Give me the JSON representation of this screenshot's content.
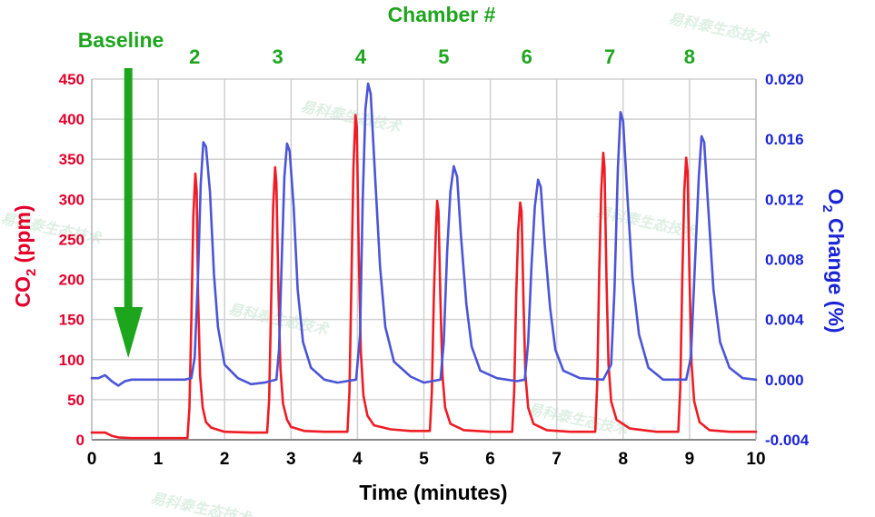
{
  "chart_data": {
    "type": "line",
    "title": "Chamber #",
    "xlabel": "Time (minutes)",
    "ylabel_left": "CO",
    "ylabel_left_sub": "2",
    "ylabel_left_unit": " (ppm)",
    "ylabel_right": "O",
    "ylabel_right_sub": "2",
    "ylabel_right_unit": " Change (%)",
    "xlim": [
      0,
      10
    ],
    "ylim_left": [
      0,
      450
    ],
    "ylim_right": [
      -0.004,
      0.02
    ],
    "xticks": [
      "0",
      "1",
      "2",
      "3",
      "4",
      "5",
      "6",
      "7",
      "8",
      "9",
      "10"
    ],
    "yticks_left": [
      "0",
      "50",
      "100",
      "150",
      "200",
      "250",
      "300",
      "350",
      "400",
      "450"
    ],
    "yticks_right": [
      "-0.004",
      "0.000",
      "0.004",
      "0.008",
      "0.012",
      "0.016",
      "0.020"
    ],
    "grid": true,
    "colors": {
      "co2": "#ee1c25",
      "o2": "#4b55d6",
      "annotation": "#1ea51e",
      "grid": "#d0d0d0"
    },
    "annotations": {
      "baseline_label": "Baseline",
      "baseline_arrow_x": 0.55,
      "chambers": [
        {
          "label": "2",
          "x": 1.55
        },
        {
          "label": "3",
          "x": 2.8
        },
        {
          "label": "4",
          "x": 4.05
        },
        {
          "label": "5",
          "x": 5.3
        },
        {
          "label": "6",
          "x": 6.55
        },
        {
          "label": "7",
          "x": 7.8
        },
        {
          "label": "8",
          "x": 9.0
        }
      ]
    },
    "series": [
      {
        "axis": "left",
        "points": [
          [
            0,
            9
          ],
          [
            0.1,
            9
          ],
          [
            0.2,
            9
          ],
          [
            0.3,
            5
          ],
          [
            0.4,
            3
          ],
          [
            0.6,
            2
          ],
          [
            0.8,
            2
          ],
          [
            1.0,
            2
          ],
          [
            1.2,
            2
          ],
          [
            1.4,
            2
          ],
          [
            1.44,
            2
          ],
          [
            1.47,
            40
          ],
          [
            1.5,
            150
          ],
          [
            1.53,
            280
          ],
          [
            1.56,
            332
          ],
          [
            1.58,
            310
          ],
          [
            1.6,
            180
          ],
          [
            1.63,
            80
          ],
          [
            1.67,
            40
          ],
          [
            1.72,
            22
          ],
          [
            1.8,
            15
          ],
          [
            2.0,
            10
          ],
          [
            2.4,
            9
          ],
          [
            2.64,
            9
          ],
          [
            2.67,
            50
          ],
          [
            2.7,
            170
          ],
          [
            2.73,
            290
          ],
          [
            2.76,
            340
          ],
          [
            2.78,
            320
          ],
          [
            2.81,
            190
          ],
          [
            2.84,
            90
          ],
          [
            2.88,
            45
          ],
          [
            2.94,
            25
          ],
          [
            3.0,
            16
          ],
          [
            3.2,
            11
          ],
          [
            3.5,
            10
          ],
          [
            3.85,
            10
          ],
          [
            3.88,
            60
          ],
          [
            3.91,
            200
          ],
          [
            3.94,
            340
          ],
          [
            3.97,
            405
          ],
          [
            3.99,
            390
          ],
          [
            4.02,
            230
          ],
          [
            4.05,
            110
          ],
          [
            4.09,
            55
          ],
          [
            4.15,
            30
          ],
          [
            4.25,
            18
          ],
          [
            4.5,
            13
          ],
          [
            4.8,
            11
          ],
          [
            5.09,
            11
          ],
          [
            5.12,
            60
          ],
          [
            5.15,
            180
          ],
          [
            5.18,
            260
          ],
          [
            5.2,
            298
          ],
          [
            5.22,
            285
          ],
          [
            5.25,
            170
          ],
          [
            5.28,
            80
          ],
          [
            5.32,
            40
          ],
          [
            5.4,
            20
          ],
          [
            5.6,
            12
          ],
          [
            6.0,
            10
          ],
          [
            6.33,
            10
          ],
          [
            6.36,
            60
          ],
          [
            6.39,
            180
          ],
          [
            6.42,
            260
          ],
          [
            6.45,
            296
          ],
          [
            6.47,
            285
          ],
          [
            6.5,
            170
          ],
          [
            6.53,
            80
          ],
          [
            6.57,
            40
          ],
          [
            6.65,
            20
          ],
          [
            6.85,
            12
          ],
          [
            7.2,
            10
          ],
          [
            7.58,
            10
          ],
          [
            7.61,
            70
          ],
          [
            7.64,
            210
          ],
          [
            7.67,
            310
          ],
          [
            7.7,
            358
          ],
          [
            7.72,
            340
          ],
          [
            7.75,
            200
          ],
          [
            7.78,
            95
          ],
          [
            7.82,
            48
          ],
          [
            7.9,
            25
          ],
          [
            8.1,
            14
          ],
          [
            8.5,
            10
          ],
          [
            8.83,
            10
          ],
          [
            8.86,
            65
          ],
          [
            8.89,
            200
          ],
          [
            8.92,
            310
          ],
          [
            8.95,
            352
          ],
          [
            8.97,
            335
          ],
          [
            9.0,
            200
          ],
          [
            9.03,
            95
          ],
          [
            9.07,
            48
          ],
          [
            9.15,
            22
          ],
          [
            9.3,
            12
          ],
          [
            9.6,
            10
          ],
          [
            10.0,
            10
          ]
        ]
      },
      {
        "axis": "right",
        "points": [
          [
            0,
            0.0001
          ],
          [
            0.1,
            0.0001
          ],
          [
            0.2,
            0.0003
          ],
          [
            0.3,
            -0.0001
          ],
          [
            0.4,
            -0.0004
          ],
          [
            0.5,
            -0.0001
          ],
          [
            0.6,
            0.0
          ],
          [
            0.8,
            0.0
          ],
          [
            1.0,
            0.0
          ],
          [
            1.2,
            0.0
          ],
          [
            1.4,
            0.0
          ],
          [
            1.5,
            0.0001
          ],
          [
            1.55,
            0.0015
          ],
          [
            1.6,
            0.007
          ],
          [
            1.64,
            0.013
          ],
          [
            1.68,
            0.0158
          ],
          [
            1.72,
            0.0155
          ],
          [
            1.78,
            0.0125
          ],
          [
            1.84,
            0.007
          ],
          [
            1.9,
            0.0035
          ],
          [
            2.0,
            0.001
          ],
          [
            2.2,
            0.0001
          ],
          [
            2.4,
            -0.0003
          ],
          [
            2.6,
            -0.0002
          ],
          [
            2.78,
            0.0
          ],
          [
            2.82,
            0.002
          ],
          [
            2.86,
            0.008
          ],
          [
            2.9,
            0.0135
          ],
          [
            2.94,
            0.0157
          ],
          [
            2.98,
            0.0152
          ],
          [
            3.04,
            0.0115
          ],
          [
            3.1,
            0.006
          ],
          [
            3.18,
            0.0025
          ],
          [
            3.3,
            0.0008
          ],
          [
            3.5,
            0.0
          ],
          [
            3.7,
            -0.0002
          ],
          [
            3.98,
            0.0
          ],
          [
            4.04,
            0.003
          ],
          [
            4.08,
            0.012
          ],
          [
            4.12,
            0.018
          ],
          [
            4.16,
            0.0197
          ],
          [
            4.2,
            0.019
          ],
          [
            4.26,
            0.014
          ],
          [
            4.34,
            0.0075
          ],
          [
            4.42,
            0.0035
          ],
          [
            4.55,
            0.0012
          ],
          [
            4.8,
            0.0002
          ],
          [
            5.0,
            -0.0002
          ],
          [
            5.25,
            0.0
          ],
          [
            5.3,
            0.0025
          ],
          [
            5.35,
            0.0085
          ],
          [
            5.4,
            0.0125
          ],
          [
            5.45,
            0.0142
          ],
          [
            5.5,
            0.0135
          ],
          [
            5.56,
            0.0095
          ],
          [
            5.64,
            0.005
          ],
          [
            5.72,
            0.0022
          ],
          [
            5.85,
            0.0006
          ],
          [
            6.1,
            0.0001
          ],
          [
            6.4,
            -0.0001
          ],
          [
            6.52,
            0.0
          ],
          [
            6.57,
            0.0025
          ],
          [
            6.62,
            0.0075
          ],
          [
            6.67,
            0.0115
          ],
          [
            6.72,
            0.0133
          ],
          [
            6.76,
            0.0128
          ],
          [
            6.82,
            0.009
          ],
          [
            6.9,
            0.0048
          ],
          [
            6.98,
            0.002
          ],
          [
            7.1,
            0.0006
          ],
          [
            7.35,
            0.0001
          ],
          [
            7.7,
            0.0
          ],
          [
            7.82,
            0.001
          ],
          [
            7.87,
            0.006
          ],
          [
            7.92,
            0.014
          ],
          [
            7.96,
            0.0178
          ],
          [
            8.0,
            0.0172
          ],
          [
            8.06,
            0.0125
          ],
          [
            8.14,
            0.0068
          ],
          [
            8.24,
            0.003
          ],
          [
            8.38,
            0.0008
          ],
          [
            8.6,
            0.0
          ],
          [
            8.95,
            0.0
          ],
          [
            9.02,
            0.0015
          ],
          [
            9.08,
            0.0075
          ],
          [
            9.14,
            0.0135
          ],
          [
            9.18,
            0.0162
          ],
          [
            9.22,
            0.0158
          ],
          [
            9.28,
            0.0115
          ],
          [
            9.36,
            0.006
          ],
          [
            9.46,
            0.0025
          ],
          [
            9.6,
            0.0008
          ],
          [
            9.8,
            0.0001
          ],
          [
            10.0,
            0.0
          ]
        ]
      }
    ]
  }
}
